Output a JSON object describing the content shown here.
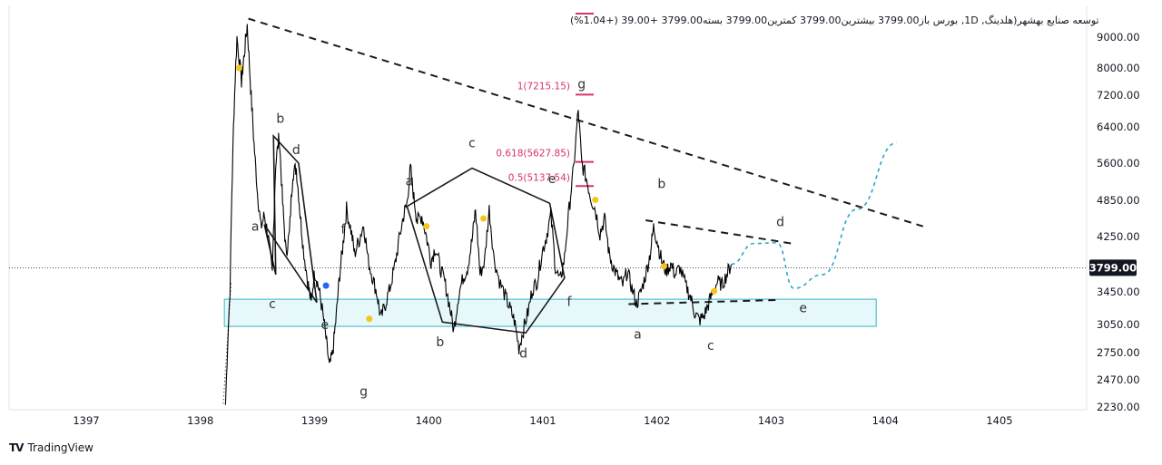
{
  "chart_data": {
    "type": "line",
    "header": {
      "text": "توسعه صنایع بهشهر(هلدینگ, 1D, بورس  باز3799.00  بیشترین3799.00  کمترین3799.00  بسته3799.00  +39.00 (+1.04%)"
    },
    "x_ticks": [
      "1397",
      "1398",
      "1399",
      "1400",
      "1401",
      "1402",
      "1403",
      "1404",
      "1405"
    ],
    "y_ticks": [
      "9000.00",
      "8000.00",
      "7200.00",
      "6400.00",
      "5600.00",
      "4850.00",
      "4250.00",
      "3450.00",
      "3050.00",
      "2750.00",
      "2470.00",
      "2230.00"
    ],
    "last_price": "3799.00",
    "last_price_value": 3799,
    "price_series": [
      {
        "t": 1398.22,
        "v": 2250
      },
      {
        "t": 1398.26,
        "v": 3500
      },
      {
        "t": 1398.29,
        "v": 6400
      },
      {
        "t": 1398.32,
        "v": 9000
      },
      {
        "t": 1398.36,
        "v": 7600
      },
      {
        "t": 1398.38,
        "v": 8300
      },
      {
        "t": 1398.41,
        "v": 9400
      },
      {
        "t": 1398.44,
        "v": 7400
      },
      {
        "t": 1398.47,
        "v": 6000
      },
      {
        "t": 1398.5,
        "v": 5000
      },
      {
        "t": 1398.53,
        "v": 4400
      },
      {
        "t": 1398.56,
        "v": 4600
      },
      {
        "t": 1398.59,
        "v": 4300
      },
      {
        "t": 1398.63,
        "v": 3700
      },
      {
        "t": 1398.66,
        "v": 5600
      },
      {
        "t": 1398.69,
        "v": 6200
      },
      {
        "t": 1398.72,
        "v": 4800
      },
      {
        "t": 1398.75,
        "v": 4000
      },
      {
        "t": 1398.78,
        "v": 4300
      },
      {
        "t": 1398.81,
        "v": 5400
      },
      {
        "t": 1398.84,
        "v": 5500
      },
      {
        "t": 1398.87,
        "v": 4700
      },
      {
        "t": 1398.9,
        "v": 4100
      },
      {
        "t": 1398.94,
        "v": 3600
      },
      {
        "t": 1398.97,
        "v": 3300
      },
      {
        "t": 1399.0,
        "v": 3750
      },
      {
        "t": 1399.03,
        "v": 3550
      },
      {
        "t": 1399.06,
        "v": 3300
      },
      {
        "t": 1399.1,
        "v": 2900
      },
      {
        "t": 1399.13,
        "v": 2600
      },
      {
        "t": 1399.16,
        "v": 2750
      },
      {
        "t": 1399.19,
        "v": 3150
      },
      {
        "t": 1399.22,
        "v": 3700
      },
      {
        "t": 1399.25,
        "v": 4150
      },
      {
        "t": 1399.28,
        "v": 4700
      },
      {
        "t": 1399.32,
        "v": 4350
      },
      {
        "t": 1399.35,
        "v": 4000
      },
      {
        "t": 1399.39,
        "v": 4200
      },
      {
        "t": 1399.43,
        "v": 4450
      },
      {
        "t": 1399.47,
        "v": 3900
      },
      {
        "t": 1399.51,
        "v": 3650
      },
      {
        "t": 1399.55,
        "v": 3400
      },
      {
        "t": 1399.58,
        "v": 3120
      },
      {
        "t": 1399.62,
        "v": 3300
      },
      {
        "t": 1399.66,
        "v": 3500
      },
      {
        "t": 1399.7,
        "v": 3800
      },
      {
        "t": 1399.74,
        "v": 4200
      },
      {
        "t": 1399.78,
        "v": 4600
      },
      {
        "t": 1399.81,
        "v": 4800
      },
      {
        "t": 1399.84,
        "v": 5500
      },
      {
        "t": 1399.87,
        "v": 4900
      },
      {
        "t": 1399.9,
        "v": 4500
      },
      {
        "t": 1399.94,
        "v": 4600
      },
      {
        "t": 1399.98,
        "v": 4250
      },
      {
        "t": 1400.02,
        "v": 3900
      },
      {
        "t": 1400.06,
        "v": 4100
      },
      {
        "t": 1400.1,
        "v": 3800
      },
      {
        "t": 1400.14,
        "v": 3600
      },
      {
        "t": 1400.18,
        "v": 3300
      },
      {
        "t": 1400.22,
        "v": 2980
      },
      {
        "t": 1400.26,
        "v": 3400
      },
      {
        "t": 1400.3,
        "v": 3650
      },
      {
        "t": 1400.34,
        "v": 3800
      },
      {
        "t": 1400.38,
        "v": 4200
      },
      {
        "t": 1400.41,
        "v": 4700
      },
      {
        "t": 1400.45,
        "v": 3700
      },
      {
        "t": 1400.49,
        "v": 3900
      },
      {
        "t": 1400.53,
        "v": 4700
      },
      {
        "t": 1400.57,
        "v": 3950
      },
      {
        "t": 1400.62,
        "v": 3600
      },
      {
        "t": 1400.67,
        "v": 3400
      },
      {
        "t": 1400.71,
        "v": 3250
      },
      {
        "t": 1400.75,
        "v": 3100
      },
      {
        "t": 1400.79,
        "v": 2800
      },
      {
        "t": 1400.83,
        "v": 3000
      },
      {
        "t": 1400.87,
        "v": 3200
      },
      {
        "t": 1400.91,
        "v": 3500
      },
      {
        "t": 1400.95,
        "v": 3600
      },
      {
        "t": 1400.99,
        "v": 4000
      },
      {
        "t": 1401.03,
        "v": 4250
      },
      {
        "t": 1401.07,
        "v": 4600
      },
      {
        "t": 1401.11,
        "v": 3800
      },
      {
        "t": 1401.15,
        "v": 3600
      },
      {
        "t": 1401.19,
        "v": 3950
      },
      {
        "t": 1401.23,
        "v": 4700
      },
      {
        "t": 1401.27,
        "v": 5500
      },
      {
        "t": 1401.31,
        "v": 6800
      },
      {
        "t": 1401.34,
        "v": 5600
      },
      {
        "t": 1401.38,
        "v": 5300
      },
      {
        "t": 1401.42,
        "v": 4900
      },
      {
        "t": 1401.46,
        "v": 4700
      },
      {
        "t": 1401.5,
        "v": 4300
      },
      {
        "t": 1401.54,
        "v": 4550
      },
      {
        "t": 1401.58,
        "v": 4000
      },
      {
        "t": 1401.62,
        "v": 3800
      },
      {
        "t": 1401.66,
        "v": 3650
      },
      {
        "t": 1401.7,
        "v": 3550
      },
      {
        "t": 1401.74,
        "v": 3750
      },
      {
        "t": 1401.78,
        "v": 3500
      },
      {
        "t": 1401.82,
        "v": 3300
      },
      {
        "t": 1401.86,
        "v": 3450
      },
      {
        "t": 1401.9,
        "v": 3700
      },
      {
        "t": 1401.94,
        "v": 4000
      },
      {
        "t": 1401.97,
        "v": 4400
      },
      {
        "t": 1402.0,
        "v": 4200
      },
      {
        "t": 1402.04,
        "v": 3900
      },
      {
        "t": 1402.08,
        "v": 3750
      },
      {
        "t": 1402.12,
        "v": 3850
      },
      {
        "t": 1402.16,
        "v": 3700
      },
      {
        "t": 1402.2,
        "v": 3800
      },
      {
        "t": 1402.25,
        "v": 3550
      },
      {
        "t": 1402.29,
        "v": 3400
      },
      {
        "t": 1402.33,
        "v": 3200
      },
      {
        "t": 1402.37,
        "v": 3100
      },
      {
        "t": 1402.41,
        "v": 3150
      },
      {
        "t": 1402.45,
        "v": 3300
      },
      {
        "t": 1402.49,
        "v": 3450
      },
      {
        "t": 1402.53,
        "v": 3600
      },
      {
        "t": 1402.57,
        "v": 3550
      },
      {
        "t": 1402.61,
        "v": 3700
      },
      {
        "t": 1402.65,
        "v": 3850
      }
    ],
    "trendlines": [
      {
        "name": "upper-trendline",
        "style": "dashed",
        "points": [
          {
            "t": 1398.42,
            "v": 9600
          },
          {
            "t": 1404.33,
            "v": 4420
          }
        ]
      },
      {
        "name": "wedge-line-upper",
        "style": "dashed",
        "points": [
          {
            "t": 1401.9,
            "v": 4520
          },
          {
            "t": 1403.18,
            "v": 4150
          }
        ]
      },
      {
        "name": "wedge-line-lower",
        "style": "dashed",
        "points": [
          {
            "t": 1401.75,
            "v": 3300
          },
          {
            "t": 1403.05,
            "v": 3350
          }
        ]
      }
    ],
    "wave_lines": [
      {
        "name": "wave-lines-left",
        "points": [
          {
            "t": 1398.56,
            "v": 4450
          },
          {
            "t": 1398.66,
            "v": 3700
          },
          {
            "t": 1398.64,
            "v": 6200
          },
          {
            "t": 1398.86,
            "v": 5600
          },
          {
            "t": 1399.02,
            "v": 3320
          },
          {
            "t": 1398.56,
            "v": 4450
          }
        ]
      },
      {
        "name": "wave-lines-middle",
        "points": [
          {
            "t": 1399.81,
            "v": 4750
          },
          {
            "t": 1400.38,
            "v": 5500
          },
          {
            "t": 1401.06,
            "v": 4800
          },
          {
            "t": 1401.19,
            "v": 3650
          },
          {
            "t": 1400.85,
            "v": 2960
          },
          {
            "t": 1400.12,
            "v": 3080
          },
          {
            "t": 1399.81,
            "v": 4750
          }
        ]
      }
    ],
    "projection": {
      "name": "projected-path",
      "points": [
        {
          "t": 1402.65,
          "v": 3850
        },
        {
          "t": 1402.85,
          "v": 4150
        },
        {
          "t": 1403.05,
          "v": 4160
        },
        {
          "t": 1403.2,
          "v": 3500
        },
        {
          "t": 1403.45,
          "v": 3700
        },
        {
          "t": 1403.75,
          "v": 4700
        },
        {
          "t": 1404.1,
          "v": 6050
        }
      ]
    },
    "support_zone": {
      "from_t": 1398.21,
      "to_t": 1403.92,
      "low": 3030,
      "high": 3360
    },
    "fib_levels": [
      {
        "label": "1(7215.15)",
        "value": 7215.15
      },
      {
        "label": "0.618(5627.85)",
        "value": 5627.85
      },
      {
        "label": "0.5(5137.54)",
        "value": 5137.54
      }
    ],
    "wave_labels": [
      {
        "text": "a",
        "t": 1398.48,
        "v": 4350
      },
      {
        "text": "b",
        "t": 1398.7,
        "v": 6500
      },
      {
        "text": "c",
        "t": 1398.63,
        "v": 3250
      },
      {
        "text": "d",
        "t": 1398.84,
        "v": 5800
      },
      {
        "text": "e",
        "t": 1399.09,
        "v": 3000
      },
      {
        "text": "f",
        "t": 1399.25,
        "v": 4300
      },
      {
        "text": "g",
        "t": 1399.43,
        "v": 2330
      },
      {
        "text": "a",
        "t": 1399.83,
        "v": 5150
      },
      {
        "text": "b",
        "t": 1400.1,
        "v": 2820
      },
      {
        "text": "c",
        "t": 1400.38,
        "v": 5950
      },
      {
        "text": "d",
        "t": 1400.83,
        "v": 2700
      },
      {
        "text": "e",
        "t": 1401.08,
        "v": 5200
      },
      {
        "text": "f",
        "t": 1401.23,
        "v": 3280
      },
      {
        "text": "g",
        "t": 1401.34,
        "v": 7400
      },
      {
        "text": "a",
        "t": 1401.83,
        "v": 2900
      },
      {
        "text": "b",
        "t": 1402.04,
        "v": 5100
      },
      {
        "text": "c",
        "t": 1402.47,
        "v": 2780
      },
      {
        "text": "d",
        "t": 1403.08,
        "v": 4420
      },
      {
        "text": "e",
        "t": 1403.28,
        "v": 3200
      }
    ],
    "markers": [
      {
        "color": "#f5c518",
        "t": 1398.34,
        "v": 8000
      },
      {
        "color": "#2962ff",
        "t": 1399.1,
        "v": 3540
      },
      {
        "color": "#f5c518",
        "t": 1399.48,
        "v": 3120
      },
      {
        "color": "#f5c518",
        "t": 1399.98,
        "v": 4420
      },
      {
        "color": "#f5c518",
        "t": 1400.48,
        "v": 4550
      },
      {
        "color": "#f5c518",
        "t": 1401.46,
        "v": 4860
      },
      {
        "color": "#f5c518",
        "t": 1402.06,
        "v": 3820
      },
      {
        "color": "#f5c518",
        "t": 1402.5,
        "v": 3460
      }
    ],
    "colors": {
      "price": "#000000",
      "trend": "#1a1a1a",
      "projection": "#26a9c4",
      "zone_fill": "#e6f8fa",
      "zone_border": "#33b5c9",
      "fib": "#d6336c",
      "price_tag": "#131722",
      "axis_text": "#131722",
      "grid": "#e0e3eb"
    }
  },
  "brand": {
    "name": "TradingView",
    "logo": "TV"
  }
}
